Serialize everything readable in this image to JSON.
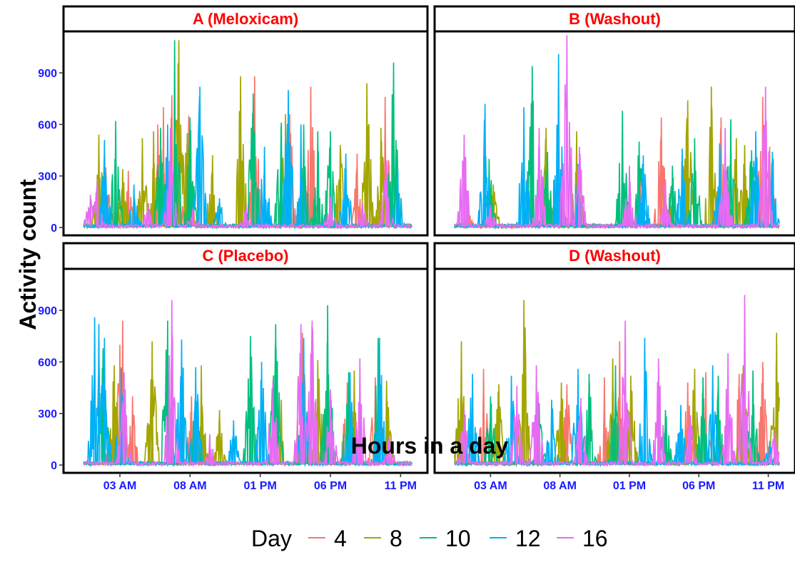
{
  "chart_data": {
    "type": "line",
    "facet_layout": "2x2 grid",
    "xlabel": "Hours in a day",
    "ylabel": "Activity count",
    "x_tick_labels": [
      "03 AM",
      "08 AM",
      "01 PM",
      "06 PM",
      "11 PM"
    ],
    "x_tick_hours": [
      3,
      8,
      13,
      18,
      23
    ],
    "xlim_hours": [
      0,
      24
    ],
    "y_ticks": [
      0,
      300,
      600,
      900
    ],
    "ylim": [
      0,
      1100
    ],
    "grid": false,
    "legend": {
      "position": "bottom",
      "title": "Day",
      "entries": [
        {
          "label": "4",
          "color": "#F8766D"
        },
        {
          "label": "8",
          "color": "#A3A500"
        },
        {
          "label": "10",
          "color": "#00BF7D"
        },
        {
          "label": "12",
          "color": "#00B0F6"
        },
        {
          "label": "16",
          "color": "#E76BF3"
        }
      ]
    },
    "panels": [
      {
        "title": "A (Meloxicam)",
        "series": [
          {
            "name": "4",
            "peaks": [
              [
                2.0,
                350
              ],
              [
                3.6,
                330
              ],
              [
                5.7,
                600
              ],
              [
                6.1,
                700
              ],
              [
                6.7,
                770
              ],
              [
                7.9,
                650
              ],
              [
                12.6,
                880
              ],
              [
                15.1,
                660
              ],
              [
                16.6,
                820
              ],
              [
                19.9,
                430
              ],
              [
                21.9,
                760
              ]
            ]
          },
          {
            "name": "8",
            "peaks": [
              [
                1.5,
                540
              ],
              [
                3.2,
                340
              ],
              [
                4.6,
                520
              ],
              [
                5.4,
                560
              ],
              [
                7.2,
                1090
              ],
              [
                7.8,
                550
              ],
              [
                9.6,
                420
              ],
              [
                11.6,
                880
              ],
              [
                14.8,
                660
              ],
              [
                18.7,
                480
              ],
              [
                20.6,
                840
              ],
              [
                21.6,
                580
              ]
            ]
          },
          {
            "name": "10",
            "peaks": [
              [
                2.7,
                620
              ],
              [
                5.9,
                580
              ],
              [
                6.9,
                1090
              ],
              [
                8.0,
                640
              ],
              [
                12.5,
                780
              ],
              [
                14.5,
                610
              ],
              [
                16.1,
                600
              ],
              [
                17.1,
                560
              ],
              [
                18.0,
                560
              ],
              [
                22.5,
                960
              ]
            ]
          },
          {
            "name": "12",
            "peaks": [
              [
                1.9,
                510
              ],
              [
                4.0,
                250
              ],
              [
                6.4,
                600
              ],
              [
                8.7,
                820
              ],
              [
                10.1,
                170
              ],
              [
                13.3,
                470
              ],
              [
                15.0,
                800
              ],
              [
                15.9,
                600
              ],
              [
                19.1,
                430
              ],
              [
                22.8,
                340
              ]
            ]
          },
          {
            "name": "16",
            "peaks": [
              [
                0.9,
                190
              ],
              [
                1.4,
                280
              ],
              [
                5.0,
                140
              ],
              [
                6.6,
                580
              ],
              [
                8.2,
                110
              ],
              [
                12.0,
                130
              ],
              [
                18.0,
                180
              ],
              [
                20.3,
                140
              ],
              [
                22.0,
                390
              ]
            ]
          }
        ]
      },
      {
        "title": "B (Washout)",
        "series": [
          {
            "name": "4",
            "peaks": [
              [
                1.4,
                100
              ],
              [
                5.6,
                280
              ],
              [
                8.1,
                310
              ],
              [
                13.8,
                300
              ],
              [
                15.3,
                640
              ],
              [
                16.9,
                360
              ],
              [
                19.6,
                640
              ],
              [
                22.6,
                760
              ],
              [
                23.1,
                470
              ]
            ]
          },
          {
            "name": "8",
            "peaks": [
              [
                3.2,
                250
              ],
              [
                7.0,
                580
              ],
              [
                9.2,
                560
              ],
              [
                15.9,
                200
              ],
              [
                17.2,
                740
              ],
              [
                18.9,
                820
              ],
              [
                20.7,
                520
              ],
              [
                21.3,
                480
              ]
            ]
          },
          {
            "name": "10",
            "peaks": [
              [
                2.9,
                400
              ],
              [
                6.0,
                940
              ],
              [
                7.1,
                440
              ],
              [
                12.5,
                680
              ],
              [
                13.7,
                500
              ],
              [
                16.1,
                360
              ],
              [
                17.7,
                520
              ],
              [
                20.3,
                630
              ],
              [
                21.8,
                450
              ]
            ]
          },
          {
            "name": "12",
            "peaks": [
              [
                2.6,
                720
              ],
              [
                5.4,
                700
              ],
              [
                7.9,
                1010
              ],
              [
                9.3,
                370
              ],
              [
                14.0,
                420
              ],
              [
                16.8,
                460
              ],
              [
                19.5,
                490
              ],
              [
                22.1,
                560
              ],
              [
                23.3,
                440
              ]
            ]
          },
          {
            "name": "16",
            "peaks": [
              [
                1.1,
                540
              ],
              [
                3.0,
                130
              ],
              [
                6.5,
                580
              ],
              [
                8.5,
                1120
              ],
              [
                9.4,
                470
              ],
              [
                13.0,
                360
              ],
              [
                15.6,
                280
              ],
              [
                19.9,
                580
              ],
              [
                22.8,
                820
              ]
            ]
          }
        ]
      },
      {
        "title": "C (Placebo)",
        "series": [
          {
            "name": "4",
            "peaks": [
              [
                2.3,
                180
              ],
              [
                3.0,
                700
              ],
              [
                3.2,
                840
              ],
              [
                3.9,
                400
              ],
              [
                8.1,
                400
              ],
              [
                16.0,
                770
              ],
              [
                17.7,
                340
              ],
              [
                19.2,
                480
              ],
              [
                21.2,
                510
              ]
            ]
          },
          {
            "name": "8",
            "peaks": [
              [
                2.6,
                580
              ],
              [
                5.3,
                720
              ],
              [
                8.8,
                580
              ],
              [
                10.1,
                320
              ],
              [
                14.5,
                380
              ],
              [
                17.1,
                610
              ],
              [
                19.7,
                550
              ],
              [
                22.0,
                490
              ]
            ]
          },
          {
            "name": "10",
            "peaks": [
              [
                1.8,
                680
              ],
              [
                6.4,
                840
              ],
              [
                8.4,
                380
              ],
              [
                12.3,
                750
              ],
              [
                14.1,
                820
              ],
              [
                17.8,
                930
              ],
              [
                19.3,
                540
              ],
              [
                21.4,
                740
              ]
            ]
          },
          {
            "name": "12",
            "peaks": [
              [
                1.2,
                860
              ],
              [
                1.5,
                820
              ],
              [
                1.9,
                740
              ],
              [
                3.1,
                560
              ],
              [
                7.4,
                730
              ],
              [
                8.4,
                570
              ],
              [
                11.1,
                260
              ],
              [
                13.1,
                600
              ],
              [
                16.1,
                740
              ],
              [
                19.4,
                540
              ],
              [
                21.5,
                740
              ]
            ]
          },
          {
            "name": "16",
            "peaks": [
              [
                3.3,
                540
              ],
              [
                6.7,
                960
              ],
              [
                9.4,
                180
              ],
              [
                13.9,
                490
              ],
              [
                15.9,
                820
              ],
              [
                16.7,
                840
              ],
              [
                18.0,
                440
              ],
              [
                20.1,
                620
              ],
              [
                22.2,
                170
              ]
            ]
          }
        ]
      },
      {
        "title": "D (Washout)",
        "series": [
          {
            "name": "4",
            "peaks": [
              [
                2.5,
                560
              ],
              [
                5.1,
                130
              ],
              [
                8.5,
                470
              ],
              [
                11.2,
                510
              ],
              [
                12.3,
                720
              ],
              [
                17.2,
                480
              ],
              [
                18.5,
                540
              ],
              [
                20.9,
                530
              ],
              [
                22.6,
                600
              ]
            ]
          },
          {
            "name": "8",
            "peaks": [
              [
                0.9,
                720
              ],
              [
                3.6,
                470
              ],
              [
                5.4,
                960
              ],
              [
                8.1,
                480
              ],
              [
                11.8,
                620
              ],
              [
                13.1,
                520
              ],
              [
                17.7,
                560
              ],
              [
                21.2,
                580
              ],
              [
                23.6,
                770
              ]
            ]
          },
          {
            "name": "10",
            "peaks": [
              [
                3.0,
                400
              ],
              [
                6.5,
                360
              ],
              [
                10.1,
                530
              ],
              [
                12.0,
                580
              ],
              [
                15.6,
                320
              ],
              [
                18.3,
                510
              ],
              [
                19.4,
                520
              ],
              [
                21.9,
                550
              ]
            ]
          },
          {
            "name": "12",
            "peaks": [
              [
                1.7,
                530
              ],
              [
                4.5,
                520
              ],
              [
                7.4,
                380
              ],
              [
                9.3,
                560
              ],
              [
                14.1,
                740
              ],
              [
                16.7,
                350
              ],
              [
                19.0,
                580
              ],
              [
                23.1,
                140
              ]
            ]
          },
          {
            "name": "16",
            "peaks": [
              [
                1.1,
                320
              ],
              [
                4.9,
                460
              ],
              [
                6.3,
                580
              ],
              [
                9.5,
                390
              ],
              [
                12.7,
                840
              ],
              [
                15.1,
                620
              ],
              [
                17.4,
                290
              ],
              [
                20.1,
                650
              ],
              [
                21.3,
                990
              ],
              [
                23.5,
                210
              ]
            ]
          }
        ]
      }
    ]
  }
}
